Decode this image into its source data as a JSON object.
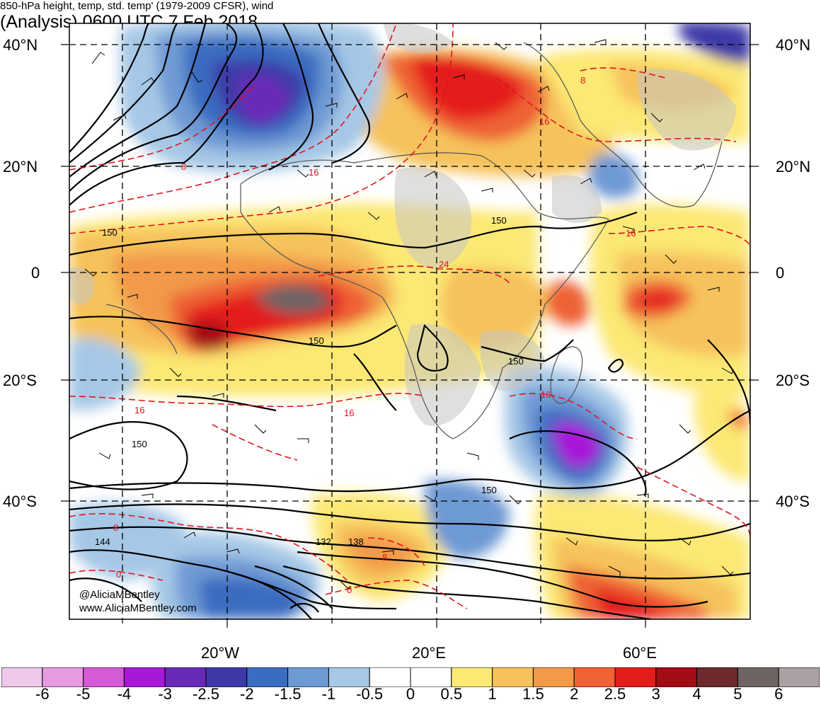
{
  "title": {
    "left": "850-hPa height, temp, std. temp' (1979-2009 CFSR), wind",
    "right": "(Analysis) 0600 UTC 7 Feb 2018"
  },
  "axes": {
    "lat_left": [
      "40°N",
      "20°N",
      "0",
      "20°S",
      "40°S"
    ],
    "lat_right": [
      "40°N",
      "20°N",
      "0",
      "20°S",
      "40°S"
    ],
    "lon": [
      "20°W",
      "20°E",
      "60°E"
    ]
  },
  "credits": [
    "@AliciaMBentley",
    "www.AliciaMBentley.com"
  ],
  "contour_labels": {
    "height": [
      "150",
      "150",
      "150",
      "150",
      "150",
      "150",
      "144",
      "132",
      "138"
    ],
    "temp": [
      "8",
      "8",
      "16",
      "16",
      "24",
      "16",
      "16",
      "16",
      "8",
      "0",
      "0",
      "16",
      "8"
    ]
  },
  "colorbar": {
    "labels": [
      "-6",
      "-5",
      "-4",
      "-3",
      "-2.5",
      "-2",
      "-1.5",
      "-1",
      "-0.5",
      "0",
      "0.5",
      "1",
      "1.5",
      "2",
      "2.5",
      "3",
      "4",
      "5",
      "6"
    ],
    "colors": [
      "#f0c8ec",
      "#e69ae0",
      "#d45ad6",
      "#a818d8",
      "#6a2ab8",
      "#3d3aa8",
      "#3a6cc0",
      "#6e9ad4",
      "#a6c8e6",
      "#ffffff",
      "#ffffff",
      "#fce874",
      "#f6c25c",
      "#f29a48",
      "#ee6236",
      "#e41c1c",
      "#a30c14",
      "#6c2a2c",
      "#6e6464",
      "#aaa2a2"
    ]
  },
  "colors": {
    "land": "#c4c4c4",
    "height_contour": "#000000",
    "temp_contour": "#e0141c"
  }
}
